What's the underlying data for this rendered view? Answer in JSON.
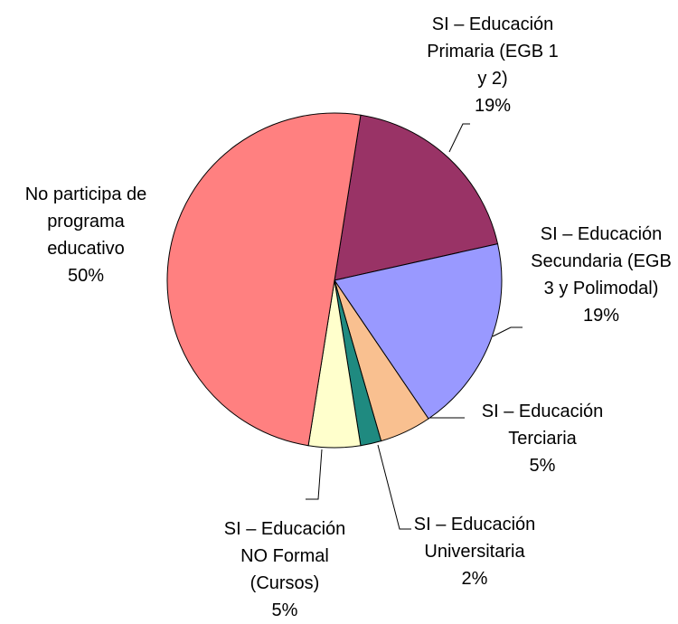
{
  "chart_data": {
    "type": "pie",
    "categories": [
      "SI – Educación Primaria (EGB 1 y 2)",
      "SI – Educación Secundaria (EGB 3 y Polimodal)",
      "SI – Educación Terciaria",
      "SI – Educación Universitaria",
      "SI – Educación NO Formal (Cursos)",
      "No participa de programa educativo"
    ],
    "values": [
      19,
      19,
      5,
      2,
      5,
      50
    ],
    "value_labels": [
      "19%",
      "19%",
      "5%",
      "2%",
      "5%",
      "50%"
    ],
    "colors": [
      "#993366",
      "#9999ff",
      "#f9c090",
      "#1f8a80",
      "#ffffcc",
      "#ff8080"
    ]
  }
}
